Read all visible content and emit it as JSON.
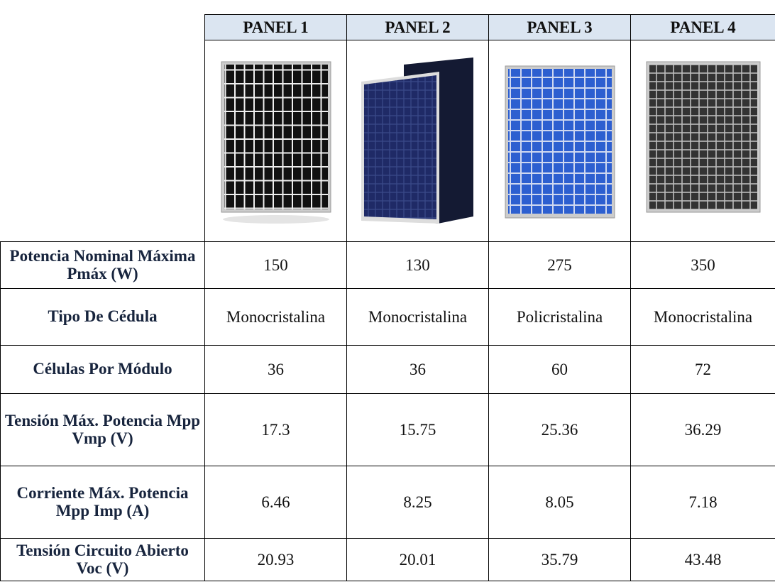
{
  "table": {
    "header": [
      "PANEL 1",
      "PANEL 2",
      "PANEL 3",
      "PANEL 4"
    ],
    "rows": [
      {
        "label": "Potencia Nominal Máxima Pmáx (W)",
        "values": [
          150,
          130,
          275,
          350
        ]
      },
      {
        "label": "Tipo De Cédula",
        "values": [
          "Monocristalina",
          "Monocristalina",
          "Policristalina",
          "Monocristalina"
        ]
      },
      {
        "label": "Células Por Módulo",
        "values": [
          36,
          36,
          60,
          72
        ]
      },
      {
        "label": "Tensión Máx. Potencia Mpp Vmp (V)",
        "values": [
          17.3,
          15.75,
          25.36,
          36.29
        ]
      },
      {
        "label": "Corriente Máx. Potencia Mpp Imp (A)",
        "values": [
          6.46,
          8.25,
          8.05,
          7.18
        ]
      },
      {
        "label": "Tensión Circuito Abierto Voc (V)",
        "values": [
          20.93,
          20.01,
          35.79,
          43.48
        ]
      }
    ]
  }
}
